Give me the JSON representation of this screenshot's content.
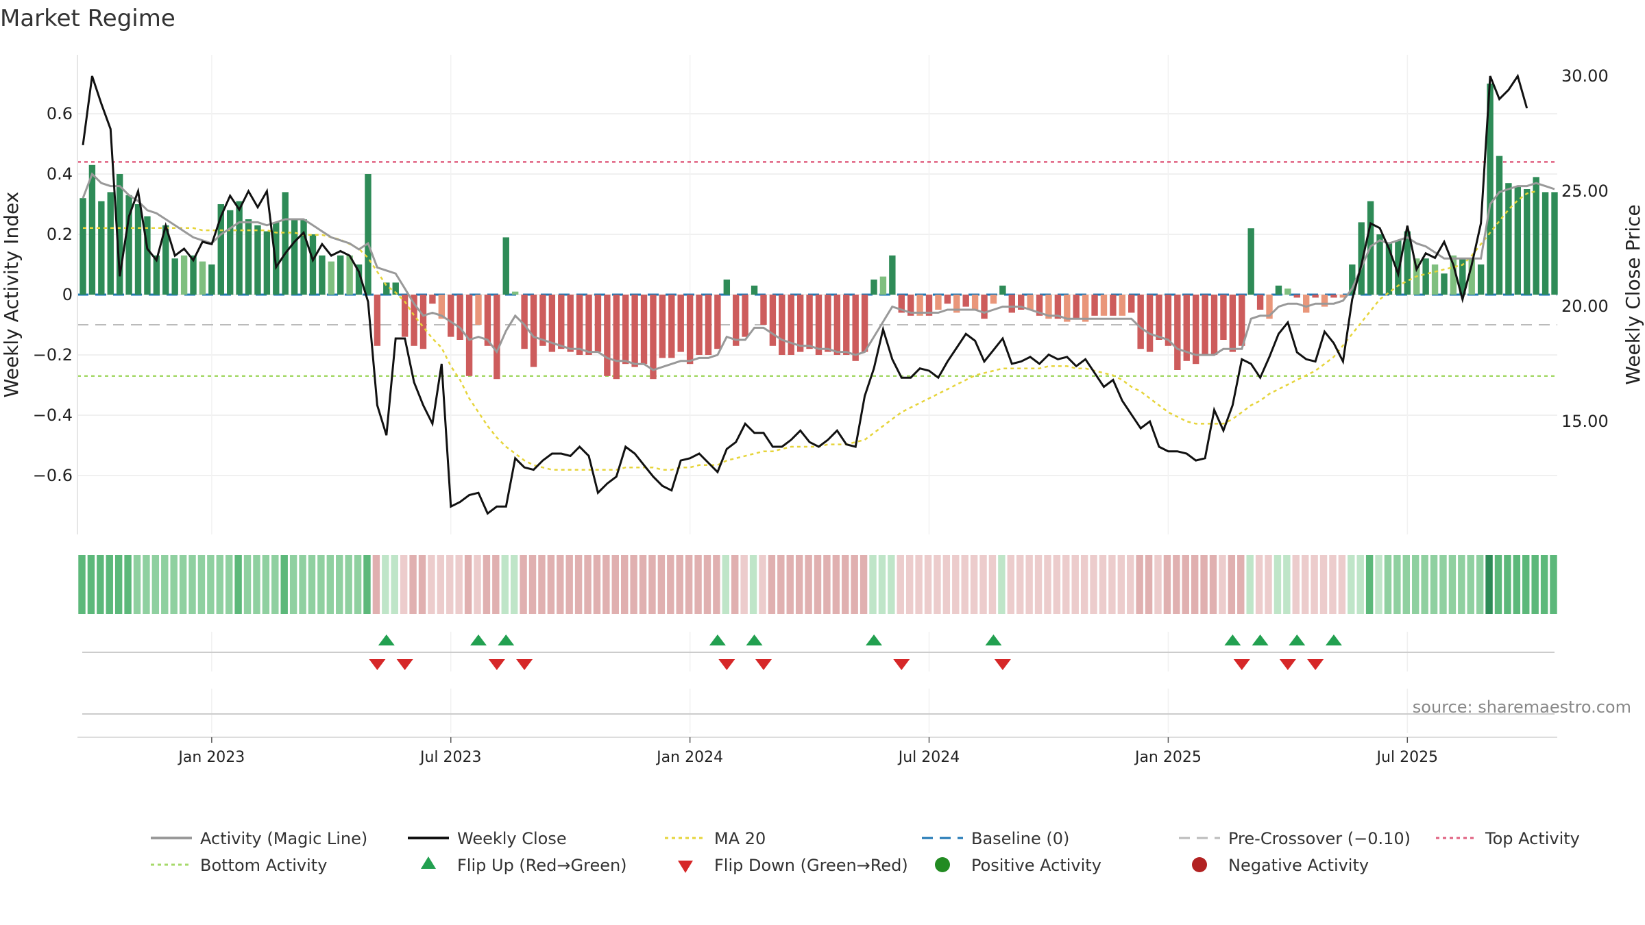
{
  "title": "Market Regime",
  "source": "source: sharemaestro.com",
  "colors": {
    "pos_strong": "#2e8b57",
    "pos_light": "#7fbf7f",
    "neg_strong": "#cd5c5c",
    "neg_light": "#e9967a",
    "activity_line": "#999999",
    "close_line": "#111111",
    "ma_line": "#e6d43a",
    "baseline": "#1f77b4",
    "pre_crossover": "#bbbbbb",
    "top_activity": "#e06080",
    "bottom_activity": "#a6d96a",
    "flip_up": "#22a050",
    "flip_down": "#d62728"
  },
  "chart_data": {
    "type": "bar",
    "title": "Market Regime",
    "ylabel_left": "Weekly Activity Index",
    "ylabel_right": "Weekly Close Price",
    "ylim_left": [
      -0.8,
      0.8
    ],
    "ylim_right": [
      10.0,
      31.0
    ],
    "yticks_left": [
      "0.6",
      "0.4",
      "0.2",
      "0",
      "−0.2",
      "−0.4",
      "−0.6"
    ],
    "yticks_left_values": [
      0.6,
      0.4,
      0.2,
      0,
      -0.2,
      -0.4,
      -0.6
    ],
    "yticks_right": [
      "30.00",
      "25.00",
      "20.00",
      "15.00"
    ],
    "yticks_right_values": [
      30,
      25,
      20,
      15
    ],
    "xticks": [
      "Jan 2023",
      "Jul 2023",
      "Jan 2024",
      "Jul 2024",
      "Jan 2025",
      "Jul 2025"
    ],
    "xtick_weeks": [
      14,
      40,
      66,
      92,
      118,
      144
    ],
    "grid": true,
    "top_activity": 0.44,
    "bottom_activity": -0.27,
    "pre_crossover": -0.1,
    "baseline": 0,
    "activity": [
      0.32,
      0.43,
      0.31,
      0.34,
      0.4,
      0.33,
      0.3,
      0.26,
      0.13,
      0.23,
      0.12,
      0.13,
      0.13,
      0.11,
      0.1,
      0.3,
      0.28,
      0.31,
      0.25,
      0.23,
      0.21,
      0.24,
      0.34,
      0.25,
      0.25,
      0.2,
      0.13,
      0.11,
      0.13,
      0.13,
      0.1,
      0.4,
      -0.17,
      0.04,
      0.04,
      -0.14,
      -0.17,
      -0.18,
      -0.03,
      -0.08,
      -0.14,
      -0.15,
      -0.27,
      -0.1,
      -0.17,
      -0.28,
      0.19,
      0.01,
      -0.18,
      -0.24,
      -0.17,
      -0.19,
      -0.18,
      -0.19,
      -0.2,
      -0.2,
      -0.19,
      -0.27,
      -0.28,
      -0.23,
      -0.24,
      -0.23,
      -0.28,
      -0.21,
      -0.21,
      -0.19,
      -0.23,
      -0.2,
      -0.2,
      -0.18,
      0.05,
      -0.17,
      -0.14,
      0.03,
      -0.1,
      -0.17,
      -0.2,
      -0.2,
      -0.19,
      -0.18,
      -0.2,
      -0.19,
      -0.2,
      -0.2,
      -0.22,
      -0.19,
      0.05,
      0.06,
      0.13,
      -0.06,
      -0.07,
      -0.07,
      -0.07,
      -0.05,
      -0.03,
      -0.06,
      -0.04,
      -0.05,
      -0.08,
      -0.03,
      0.03,
      -0.06,
      -0.05,
      -0.05,
      -0.07,
      -0.08,
      -0.08,
      -0.09,
      -0.08,
      -0.09,
      -0.07,
      -0.07,
      -0.07,
      -0.07,
      -0.06,
      -0.18,
      -0.19,
      -0.15,
      -0.17,
      -0.25,
      -0.22,
      -0.23,
      -0.2,
      -0.2,
      -0.15,
      -0.19,
      -0.17,
      0.22,
      -0.05,
      -0.08,
      0.03,
      0.02,
      -0.01,
      -0.06,
      -0.01,
      -0.04,
      -0.01,
      -0.01,
      0.1,
      0.24,
      0.31,
      0.2,
      0.17,
      0.18,
      0.21,
      0.12,
      0.12,
      0.1,
      0.07,
      0.13,
      0.12,
      0.12,
      0.1,
      0.7,
      0.46,
      0.37,
      0.36,
      0.35,
      0.39,
      0.34,
      0.34
    ],
    "magic_line": [
      0.32,
      0.4,
      0.37,
      0.36,
      0.36,
      0.33,
      0.31,
      0.28,
      0.27,
      0.25,
      0.23,
      0.21,
      0.19,
      0.18,
      0.17,
      0.2,
      0.22,
      0.24,
      0.24,
      0.24,
      0.23,
      0.24,
      0.25,
      0.25,
      0.25,
      0.23,
      0.21,
      0.19,
      0.18,
      0.17,
      0.15,
      0.17,
      0.09,
      0.08,
      0.07,
      0.02,
      -0.03,
      -0.07,
      -0.06,
      -0.07,
      -0.09,
      -0.11,
      -0.15,
      -0.14,
      -0.15,
      -0.19,
      -0.12,
      -0.07,
      -0.1,
      -0.14,
      -0.15,
      -0.16,
      -0.17,
      -0.18,
      -0.18,
      -0.19,
      -0.19,
      -0.21,
      -0.22,
      -0.22,
      -0.23,
      -0.23,
      -0.25,
      -0.24,
      -0.23,
      -0.22,
      -0.22,
      -0.21,
      -0.21,
      -0.2,
      -0.14,
      -0.15,
      -0.15,
      -0.11,
      -0.11,
      -0.13,
      -0.15,
      -0.16,
      -0.17,
      -0.17,
      -0.18,
      -0.18,
      -0.19,
      -0.19,
      -0.2,
      -0.19,
      -0.14,
      -0.09,
      -0.04,
      -0.05,
      -0.06,
      -0.06,
      -0.06,
      -0.06,
      -0.05,
      -0.05,
      -0.05,
      -0.05,
      -0.06,
      -0.05,
      -0.04,
      -0.04,
      -0.04,
      -0.05,
      -0.06,
      -0.07,
      -0.07,
      -0.08,
      -0.08,
      -0.08,
      -0.08,
      -0.08,
      -0.08,
      -0.08,
      -0.08,
      -0.11,
      -0.13,
      -0.14,
      -0.15,
      -0.18,
      -0.19,
      -0.2,
      -0.2,
      -0.2,
      -0.18,
      -0.18,
      -0.18,
      -0.08,
      -0.07,
      -0.07,
      -0.04,
      -0.03,
      -0.03,
      -0.04,
      -0.03,
      -0.03,
      -0.03,
      -0.02,
      0.02,
      0.09,
      0.16,
      0.18,
      0.17,
      0.18,
      0.19,
      0.17,
      0.16,
      0.14,
      0.12,
      0.12,
      0.12,
      0.12,
      0.12,
      0.3,
      0.34,
      0.35,
      0.36,
      0.36,
      0.37,
      0.36,
      0.35
    ],
    "weekly_close": [
      27.0,
      30.0,
      28.8,
      27.7,
      21.3,
      23.9,
      25.0,
      22.5,
      22.0,
      23.5,
      22.2,
      22.5,
      22.0,
      22.8,
      22.7,
      23.9,
      24.8,
      24.2,
      25.0,
      24.3,
      25.0,
      21.7,
      22.3,
      22.8,
      23.2,
      22.0,
      22.7,
      22.2,
      22.4,
      22.2,
      21.5,
      20.2,
      15.7,
      14.4,
      18.6,
      18.6,
      16.7,
      15.7,
      14.9,
      17.5,
      11.3,
      11.5,
      11.8,
      11.9,
      11.0,
      11.3,
      11.3,
      13.4,
      13.0,
      12.9,
      13.3,
      13.6,
      13.6,
      13.5,
      13.9,
      13.5,
      11.9,
      12.3,
      12.6,
      13.9,
      13.6,
      13.1,
      12.6,
      12.2,
      12.0,
      13.3,
      13.4,
      13.6,
      13.2,
      12.8,
      13.8,
      14.1,
      14.9,
      14.5,
      14.5,
      13.9,
      13.9,
      14.2,
      14.6,
      14.1,
      13.9,
      14.2,
      14.6,
      14.0,
      13.9,
      16.1,
      17.3,
      19.0,
      17.7,
      16.9,
      16.9,
      17.3,
      17.2,
      16.9,
      17.6,
      18.2,
      18.8,
      18.5,
      17.6,
      18.1,
      18.6,
      17.5,
      17.6,
      17.8,
      17.5,
      17.9,
      17.7,
      17.8,
      17.4,
      17.7,
      17.1,
      16.5,
      16.8,
      15.9,
      15.3,
      14.7,
      15.0,
      13.9,
      13.7,
      13.7,
      13.6,
      13.3,
      13.4,
      15.5,
      14.6,
      15.7,
      17.7,
      17.5,
      16.9,
      17.8,
      18.8,
      19.3,
      18.0,
      17.7,
      17.6,
      18.9,
      18.4,
      17.6,
      20.3,
      21.8,
      23.6,
      23.4,
      22.5,
      21.4,
      23.5,
      21.6,
      22.3,
      22.1,
      22.8,
      21.8,
      20.3,
      21.8,
      23.6,
      30.0,
      29.0,
      29.4,
      30.0,
      28.6
    ],
    "ma20": [
      23.4,
      23.4,
      23.4,
      23.4,
      23.4,
      23.4,
      23.4,
      23.4,
      23.4,
      23.4,
      23.4,
      23.4,
      23.4,
      23.3,
      23.3,
      23.3,
      23.3,
      23.3,
      23.3,
      23.3,
      23.3,
      23.2,
      23.2,
      23.2,
      23.1,
      23.1,
      23.1,
      23.0,
      22.9,
      22.7,
      22.5,
      22.1,
      21.5,
      20.9,
      20.6,
      20.2,
      19.6,
      19.1,
      18.6,
      18.2,
      17.4,
      16.8,
      16.0,
      15.4,
      14.8,
      14.3,
      13.9,
      13.6,
      13.3,
      13.1,
      13.0,
      12.9,
      12.9,
      12.9,
      12.9,
      12.9,
      12.9,
      12.9,
      12.9,
      13.0,
      13.0,
      13.0,
      13.0,
      12.9,
      12.9,
      13.0,
      13.0,
      13.1,
      13.1,
      13.1,
      13.3,
      13.4,
      13.5,
      13.6,
      13.7,
      13.7,
      13.8,
      13.9,
      13.9,
      13.9,
      13.9,
      14.0,
      14.0,
      14.0,
      14.1,
      14.2,
      14.5,
      14.8,
      15.1,
      15.4,
      15.6,
      15.8,
      16.0,
      16.2,
      16.4,
      16.6,
      16.8,
      17.0,
      17.1,
      17.2,
      17.3,
      17.3,
      17.3,
      17.3,
      17.3,
      17.4,
      17.4,
      17.4,
      17.3,
      17.3,
      17.2,
      17.1,
      17.0,
      16.8,
      16.5,
      16.3,
      16.0,
      15.7,
      15.4,
      15.2,
      15.0,
      14.9,
      14.9,
      14.9,
      14.9,
      15.1,
      15.4,
      15.7,
      15.9,
      16.2,
      16.4,
      16.6,
      16.8,
      17.0,
      17.2,
      17.5,
      17.8,
      18.3,
      18.8,
      19.3,
      19.8,
      20.3,
      20.6,
      20.9,
      21.1,
      21.3,
      21.4,
      21.5,
      21.6,
      21.7,
      21.8,
      22.2,
      22.7,
      23.2,
      23.7,
      24.2,
      24.6,
      24.9,
      25.0
    ],
    "flip_up_weeks": [
      33,
      43,
      46,
      69,
      73,
      86,
      99,
      125,
      128,
      132,
      136
    ],
    "flip_down_weeks": [
      32,
      35,
      45,
      48,
      70,
      74,
      89,
      100,
      126,
      131,
      134
    ],
    "legend": [
      "Activity (Magic Line)",
      "Weekly Close",
      "MA 20",
      "Baseline (0)",
      "Pre-Crossover (−0.10)",
      "Top Activity",
      "Bottom Activity",
      "Flip Up (Red→Green)",
      "Flip Down (Green→Red)",
      "Positive Activity",
      "Negative Activity"
    ]
  }
}
